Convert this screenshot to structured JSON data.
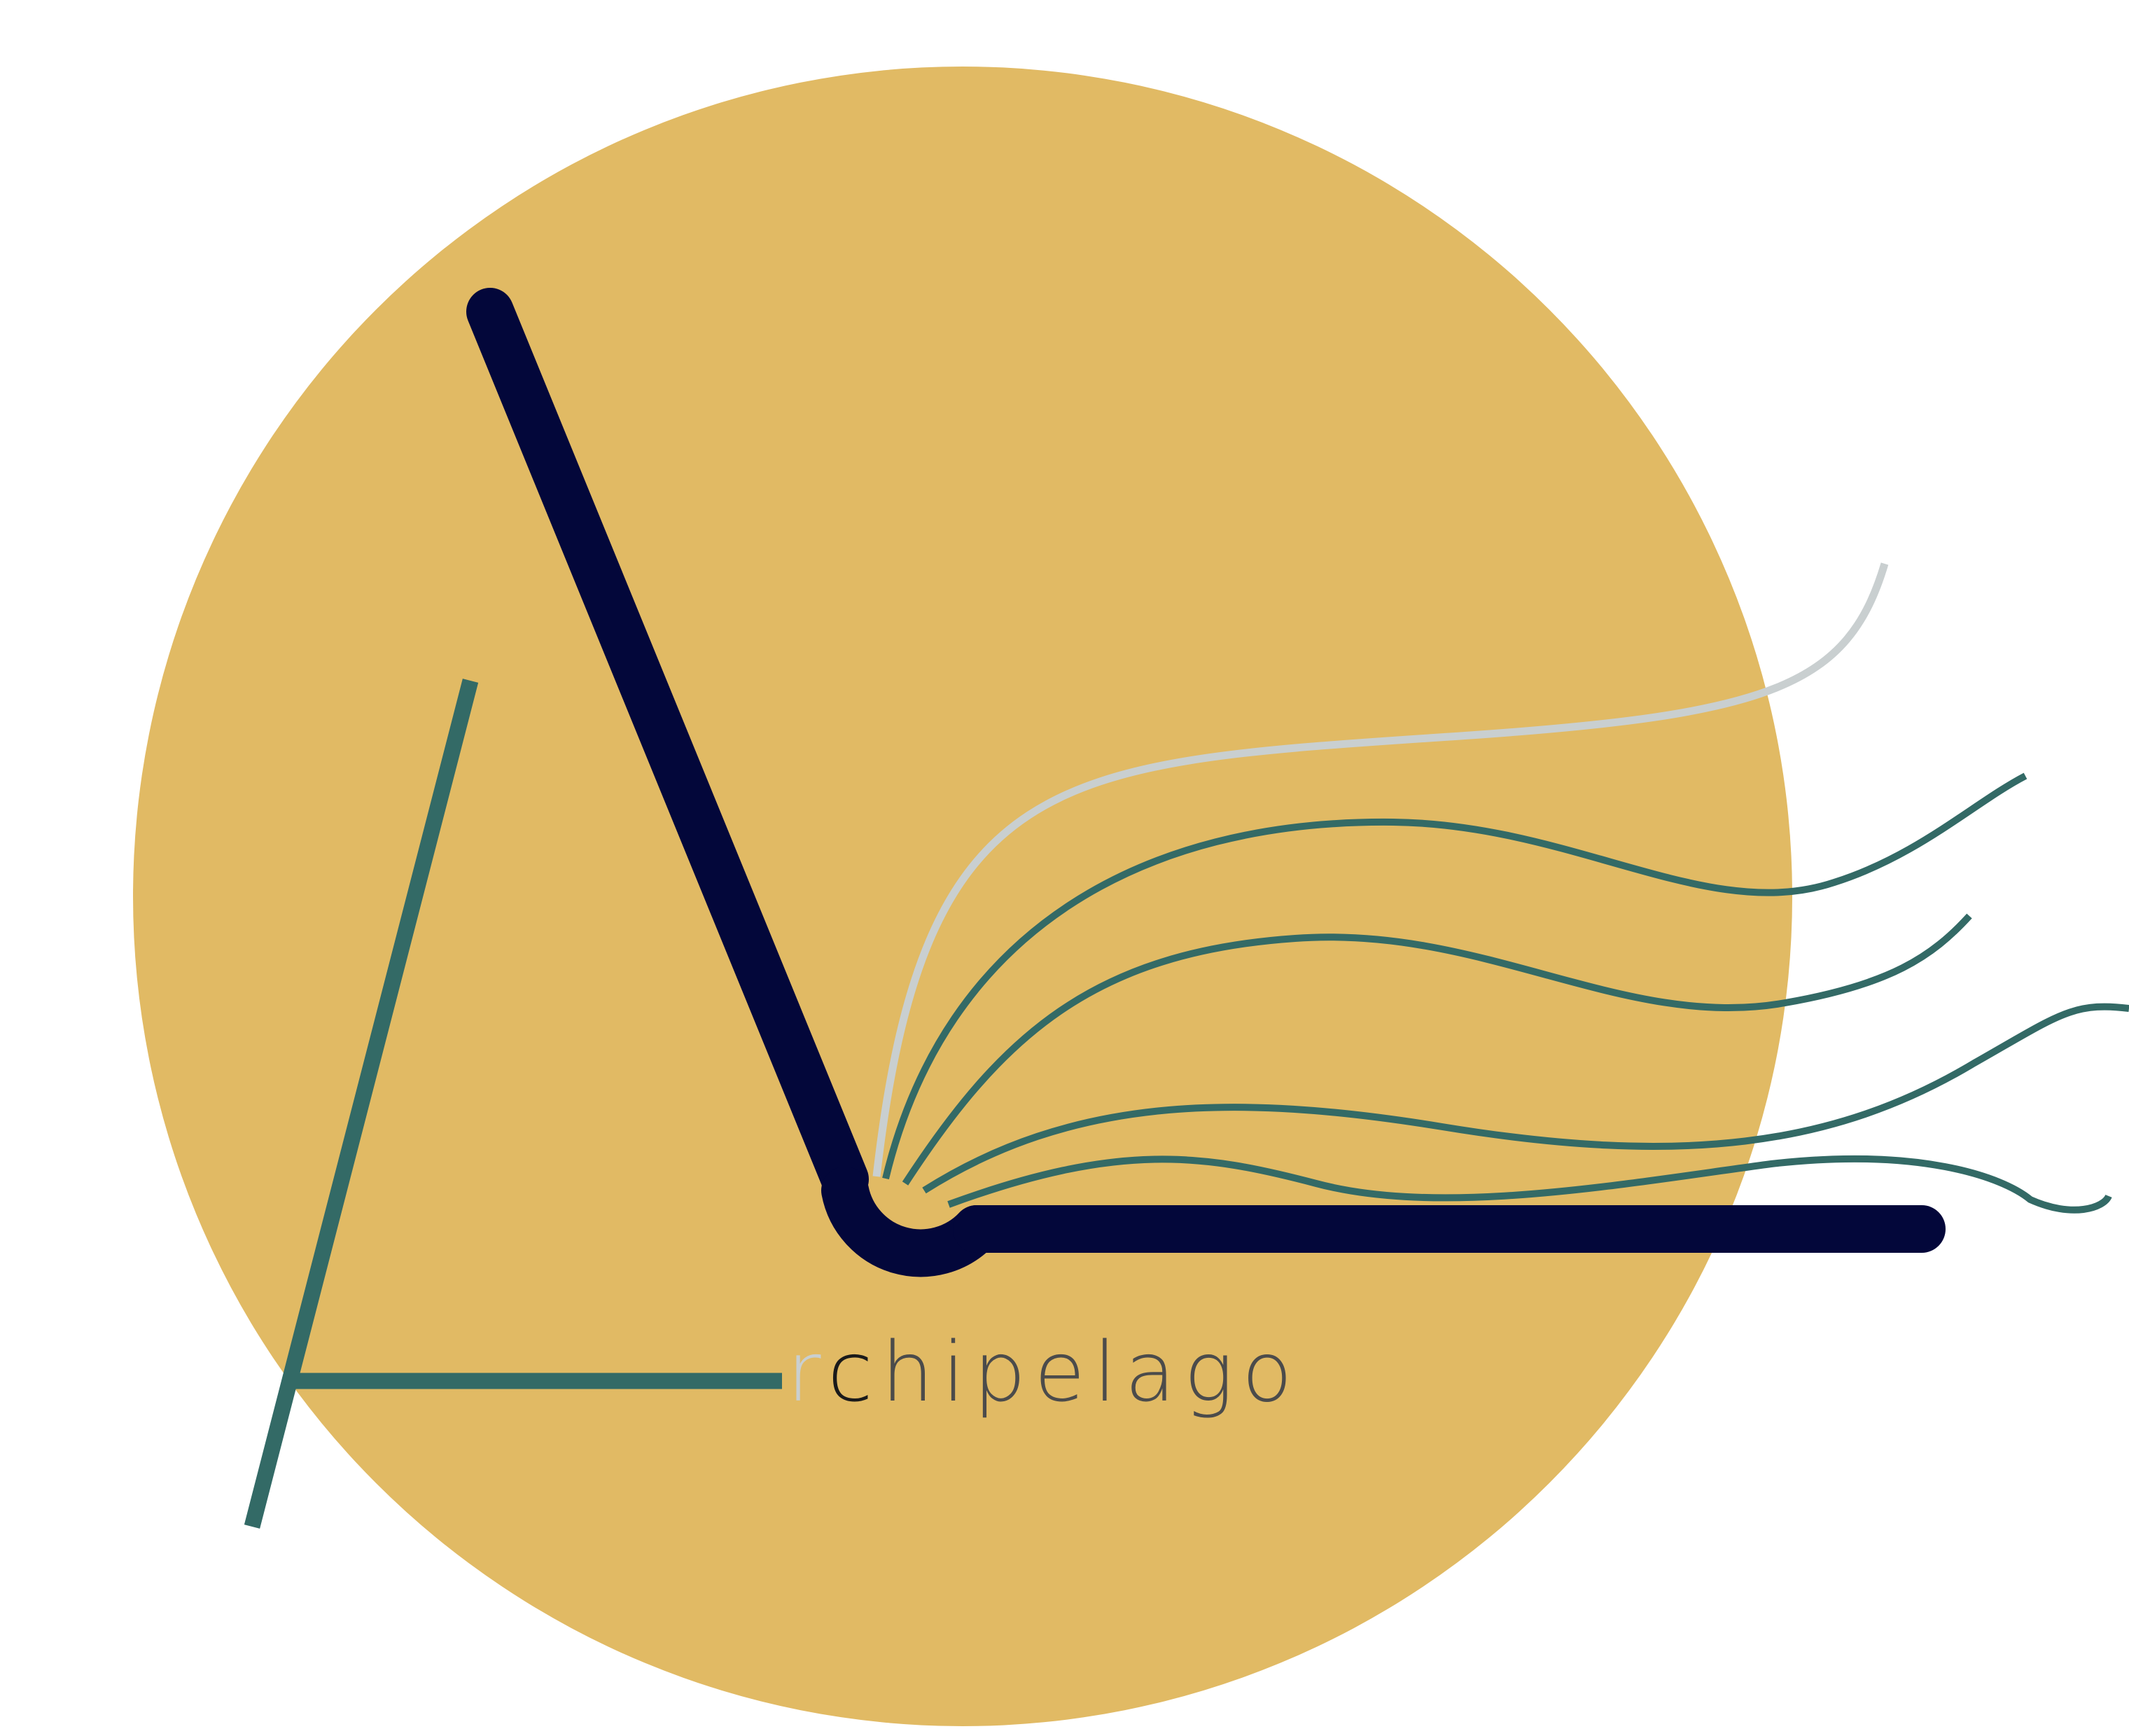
{
  "logo": {
    "name": "Archipelago",
    "wordmark_prefix": "r",
    "wordmark_highlight": "c",
    "wordmark_rest": "hipelago"
  },
  "colors": {
    "background": "#ffffff",
    "circle": "#E1BA64",
    "navy": "#03073A",
    "teal": "#336A66",
    "light_gray": "#C9CFD0",
    "text_gray": "#4B4B4B",
    "text_dark": "#1a1a1a"
  },
  "icons": [
    "sun-circle",
    "open-book",
    "letter-a-stroke",
    "page-curves"
  ]
}
